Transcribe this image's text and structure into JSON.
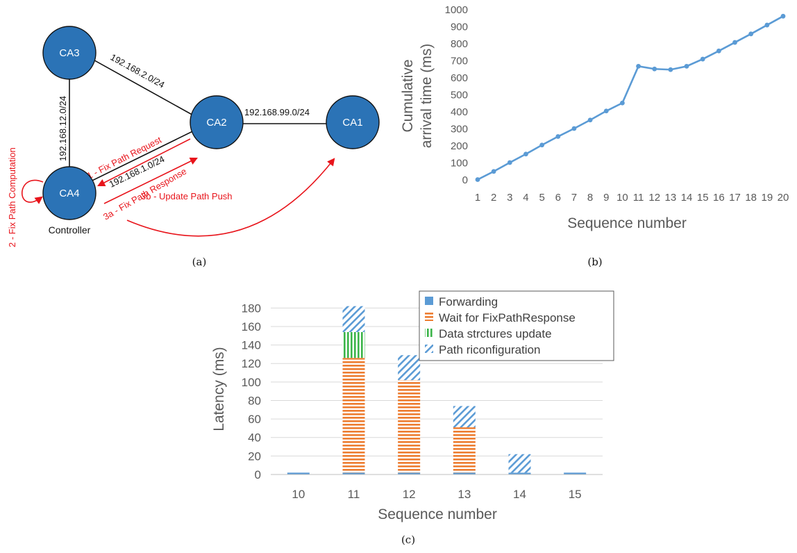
{
  "panel_a": {
    "caption": "(a)",
    "nodes": {
      "ca1": "CA1",
      "ca2": "CA2",
      "ca3": "CA3",
      "ca4": "CA4"
    },
    "controller_label": "Controller",
    "link_labels": {
      "ca3_ca2": "192.168.2.0/24",
      "ca2_ca1": "192.168.99.0/24",
      "ca3_ca4": "192.168.12.0/24",
      "ca2_ca4": "192.168.1.0/24"
    },
    "arrow_labels": {
      "fix_request": "1 - Fix Path Request",
      "fix_computation": "2 - Fix Path Computation",
      "fix_response": "3a - Fix Path Response",
      "update_push": "3b - Update Path Push"
    },
    "colors": {
      "node": "#2b73b6",
      "arrow": "#e8141b",
      "link": "#111111"
    }
  },
  "chart_data": [
    {
      "type": "line",
      "caption": "(b)",
      "title": "",
      "xlabel": "Sequence number",
      "ylabel": [
        "Cumulative",
        "arrival time (ms)"
      ],
      "x": [
        1,
        2,
        3,
        4,
        5,
        6,
        7,
        8,
        9,
        10,
        11,
        12,
        13,
        14,
        15,
        16,
        17,
        18,
        19,
        20
      ],
      "y": [
        2,
        50,
        102,
        152,
        205,
        255,
        302,
        352,
        405,
        452,
        668,
        652,
        648,
        668,
        710,
        758,
        808,
        858,
        910,
        962
      ],
      "ylim": [
        0,
        1000
      ],
      "yticks": [
        0,
        100,
        200,
        300,
        400,
        500,
        600,
        700,
        800,
        900,
        1000
      ],
      "grid": false,
      "color": "#5b9bd5"
    },
    {
      "type": "bar",
      "stacked": true,
      "caption": "(c)",
      "title": "",
      "xlabel": "Sequence number",
      "ylabel": "Latency (ms)",
      "categories": [
        "10",
        "11",
        "12",
        "13",
        "14",
        "15"
      ],
      "ylim": [
        0,
        190
      ],
      "yticks": [
        0,
        20,
        40,
        60,
        80,
        100,
        120,
        140,
        160,
        180
      ],
      "grid": true,
      "legend": "top-right",
      "series": [
        {
          "name": "Forwarding",
          "values": [
            2,
            2,
            2,
            2,
            2,
            2
          ],
          "color": "#5b9bd5",
          "pattern": "solid"
        },
        {
          "name": "Wait for FixPathResponse",
          "values": [
            0,
            124,
            100,
            49,
            0,
            0
          ],
          "color": "#ed7d31",
          "pattern": "horizontal"
        },
        {
          "name": "Data strctures update",
          "values": [
            0,
            28,
            0,
            0,
            0,
            0
          ],
          "color": "#3cb54a",
          "pattern": "vertical"
        },
        {
          "name": "Path riconfiguration",
          "values": [
            0,
            28,
            27,
            23,
            20,
            0
          ],
          "color": "#5b9bd5",
          "pattern": "diagonal"
        }
      ]
    }
  ]
}
